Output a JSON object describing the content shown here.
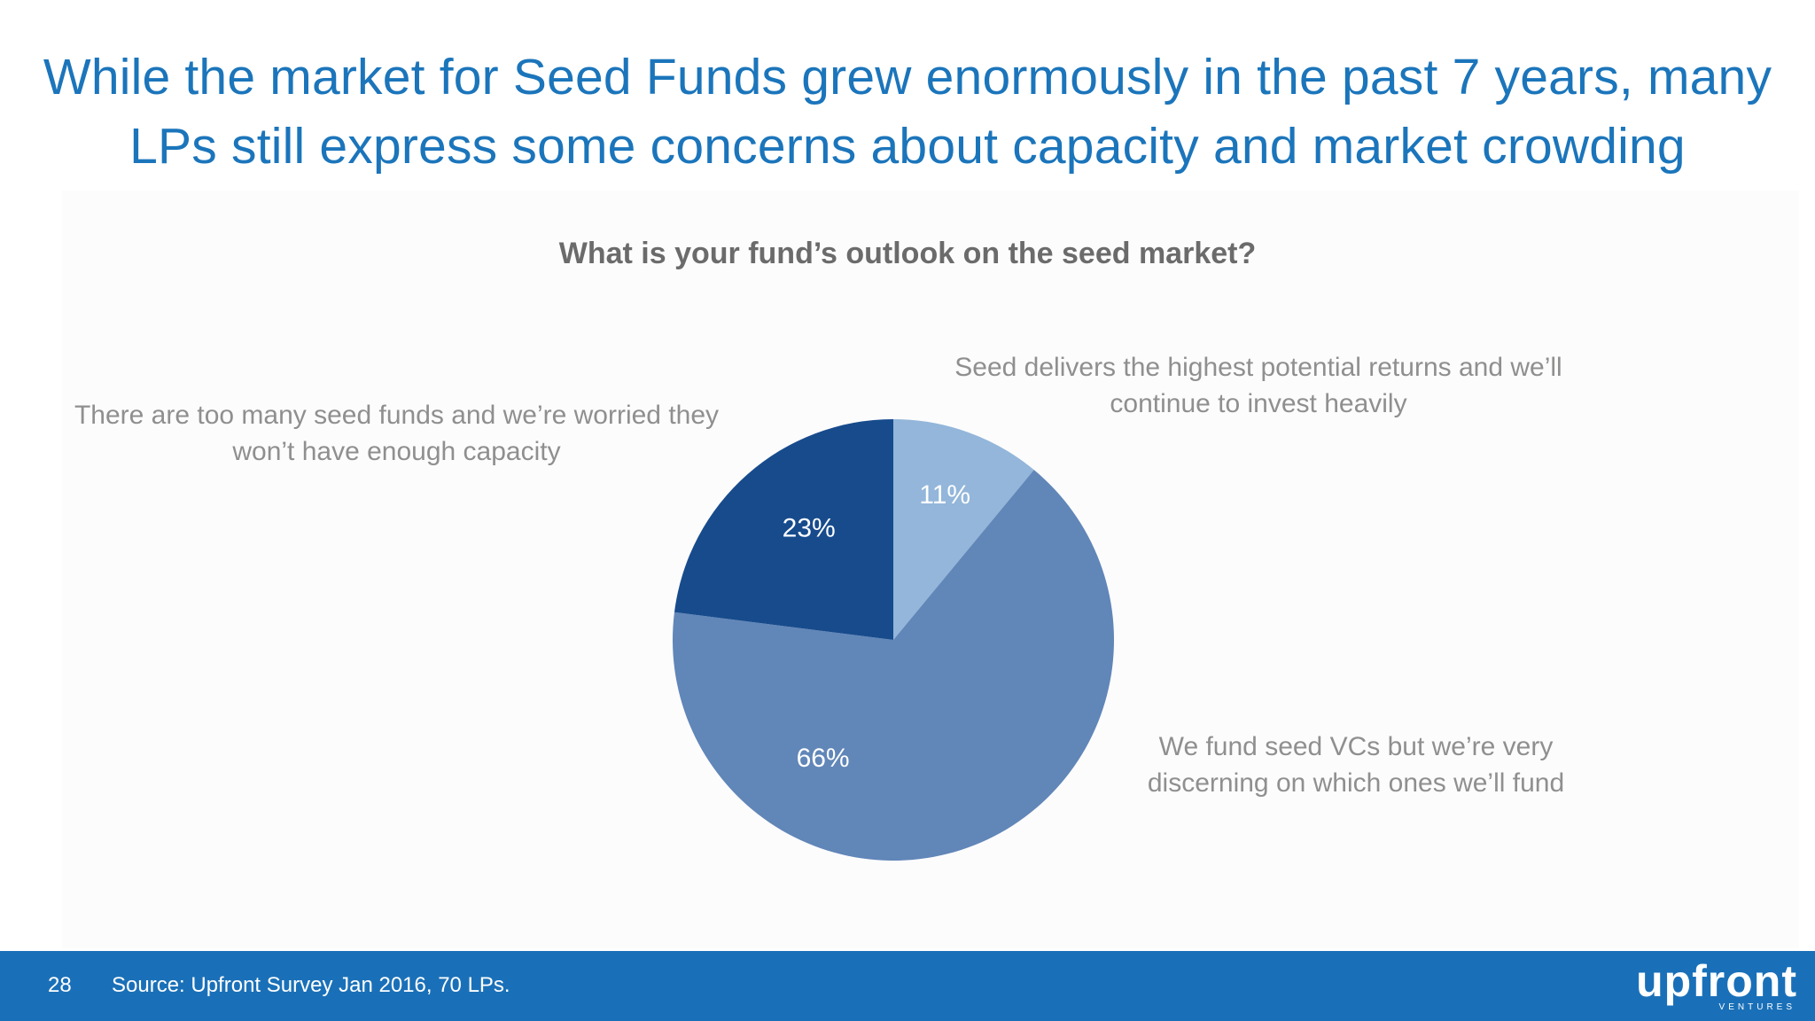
{
  "slide": {
    "title_line1": "While the market for Seed Funds grew enormously in the past 7 years, many",
    "title_line2": "LPs still express some concerns about capacity and market crowding",
    "title_color": "#1b75bb"
  },
  "chart_data": {
    "type": "pie",
    "title": "What is your fund’s outlook on the seed market?",
    "slices": [
      {
        "label_line1": "Seed delivers the highest potential returns and we’ll",
        "label_line2": "continue to invest heavily",
        "value": 11,
        "display": "11%",
        "color": "#93b6da"
      },
      {
        "label_line1": "We fund seed VCs but we’re very",
        "label_line2": "discerning on which ones we’ll fund",
        "value": 66,
        "display": "66%",
        "color": "#6186b8"
      },
      {
        "label_line1": "There are too many seed funds and we’re worried they",
        "label_line2": "won’t have enough capacity",
        "value": 23,
        "display": "23%",
        "color": "#174b8c"
      }
    ],
    "start": "12 o'clock, clockwise",
    "legend": "none"
  },
  "footer": {
    "page_number": "28",
    "source": "Source: Upfront Survey Jan 2016, 70 LPs.",
    "logo_text": "upfront",
    "logo_subtext": "VENTURES",
    "background": "#1a70b8"
  }
}
